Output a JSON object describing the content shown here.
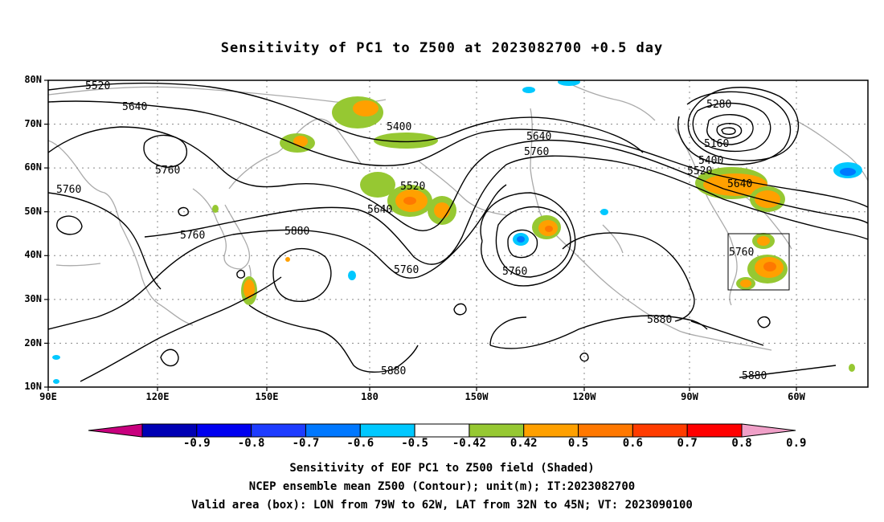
{
  "title": "Sensitivity of PC1 to Z500 at 2023082700 +0.5 day",
  "lat_labels": [
    "80N",
    "70N",
    "60N",
    "50N",
    "40N",
    "30N",
    "20N",
    "10N"
  ],
  "lon_labels": [
    "90E",
    "120E",
    "150E",
    "180",
    "150W",
    "120W",
    "90W",
    "60W"
  ],
  "contour_labels": [
    "5520",
    "5640",
    "5760",
    "5760",
    "5760",
    "5880",
    "5400",
    "5520",
    "5640",
    "5760",
    "5760",
    "5640",
    "5760",
    "5880",
    "5880",
    "5280",
    "5160",
    "5400",
    "5520",
    "5640",
    "5760",
    "5880"
  ],
  "colorbar": {
    "labels": [
      "-0.9",
      "-0.8",
      "-0.7",
      "-0.6",
      "-0.5",
      "-0.42",
      "0.42",
      "0.5",
      "0.6",
      "0.7",
      "0.8",
      "0.9"
    ],
    "colors": [
      "#c8007e",
      "#0000b4",
      "#0000f0",
      "#1e3cff",
      "#0078ff",
      "#00c8ff",
      "#ffffff",
      "#96c832",
      "#ffa000",
      "#ff7800",
      "#ff3c00",
      "#ff0000",
      "#f0a0c8"
    ]
  },
  "captions": [
    "Sensitivity of EOF PC1 to Z500 field (Shaded)",
    "NCEP ensemble mean Z500 (Contour); unit(m); IT:2023082700",
    "Valid area (box): LON from 79W to 62W, LAT from 32N to 45N; VT: 2023090100"
  ]
}
